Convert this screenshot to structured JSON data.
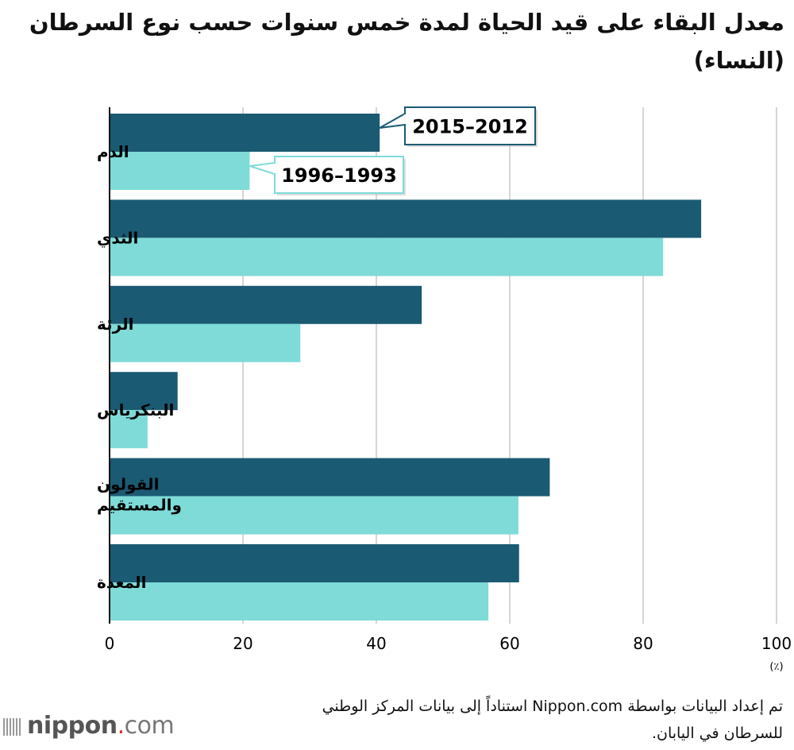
{
  "chart_data": {
    "type": "bar",
    "orientation": "horizontal",
    "title": "معدل البقاء على قيد الحياة لمدة خمس سنوات حسب نوع السرطان (النساء)",
    "categories": [
      "الدم",
      "الثدي",
      "الرئة",
      "البنكرياس",
      "القولون والمستقيم",
      "المعدة"
    ],
    "series": [
      {
        "name": "2015–2012",
        "color": "#1b5a73",
        "values": [
          40.5,
          88.7,
          46.8,
          10.2,
          66.0,
          61.4
        ]
      },
      {
        "name": "1996–1993",
        "color": "#7edbd8",
        "values": [
          21.0,
          83.0,
          28.6,
          5.7,
          61.3,
          56.8
        ]
      }
    ],
    "xlim": [
      0,
      100
    ],
    "xticks": [
      "0",
      "20",
      "40",
      "60",
      "80",
      "100"
    ],
    "xunit": "(٪)",
    "grid": true,
    "legend": "callouts on first category bars"
  },
  "footer": {
    "source": "تم إعداد البيانات بواسطة Nippon.com استناداً إلى بيانات المركز الوطني للسرطان في اليابان.",
    "logo": "nippon.com"
  }
}
